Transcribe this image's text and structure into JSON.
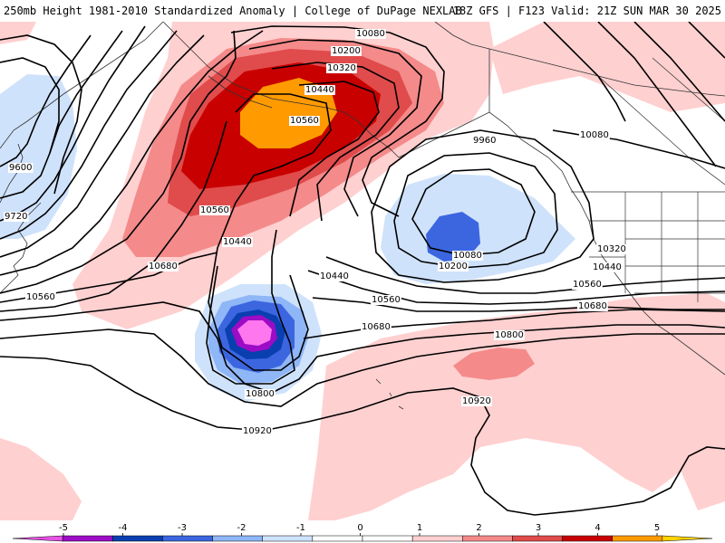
{
  "title": {
    "left": "250mb Height 1981-2010 Standardized Anomaly | College of DuPage NEXLAB",
    "right": "18Z GFS | F123 Valid: 21Z SUN MAR 30 2025"
  },
  "contour_labels": [
    "10080",
    "10200",
    "10320",
    "10440",
    "10560",
    "9960",
    "10080",
    "9600",
    "9720",
    "10560",
    "10440",
    "10680",
    "10560",
    "10080",
    "10200",
    "10320",
    "10440",
    "10560",
    "10680",
    "10440",
    "10560",
    "10680",
    "10800",
    "10800",
    "10920",
    "10920"
  ],
  "colorbar": {
    "ticks": [
      "-5",
      "-4",
      "-3",
      "-2",
      "-1",
      "0",
      "1",
      "2",
      "3",
      "4",
      "5"
    ],
    "colors": [
      "#e651e6",
      "#9c0cc6",
      "#0a3fb0",
      "#3c66e0",
      "#8fb6f6",
      "#cfe2fb",
      "#ffffff",
      "#ffffff",
      "#ffd0d0",
      "#f48a8a",
      "#e04b4b",
      "#c80000",
      "#ff9a00",
      "#ffd400"
    ]
  },
  "anomaly_colors": {
    "pos1": "#ffd0d0",
    "pos2": "#f48a8a",
    "pos3": "#e04b4b",
    "pos4": "#c80000",
    "pos5": "#ff9a00",
    "neg1": "#cfe2fb",
    "neg2": "#8fb6f6",
    "neg3": "#3c66e0",
    "neg4": "#0a3fb0",
    "neg5": "#9c0cc6",
    "neg6": "#ff77ee"
  }
}
